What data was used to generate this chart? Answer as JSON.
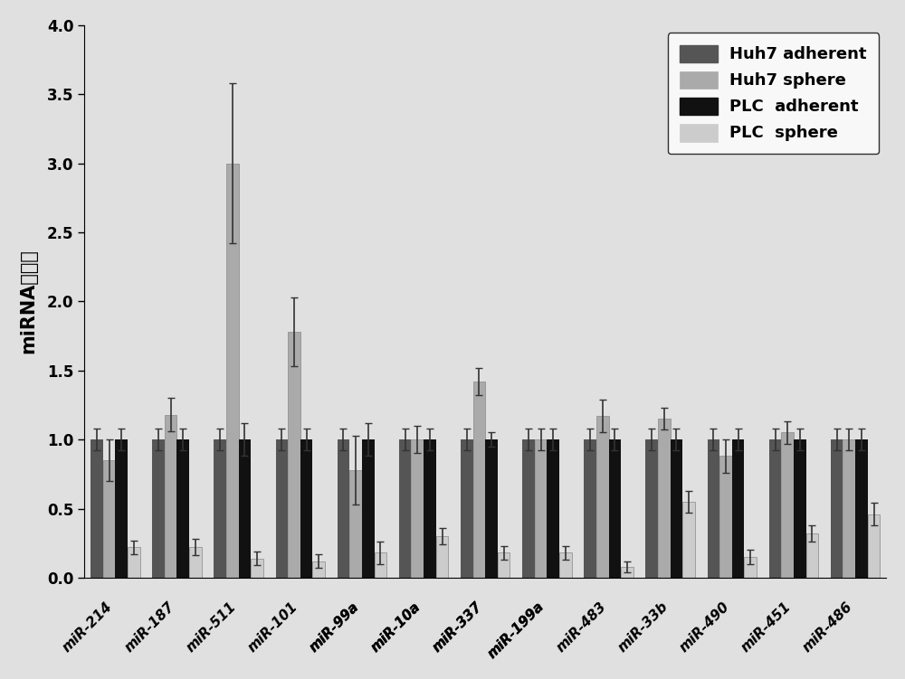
{
  "categories": [
    "miR-214",
    "miR-187",
    "miR-511",
    "miR-101",
    "miR-99a",
    "miR-10a",
    "miR-337",
    "miR-199a",
    "miR-483",
    "miR-33b",
    "miR-490",
    "miR-451",
    "miR-486"
  ],
  "underlined": [
    "miR-99a",
    "miR-10a",
    "miR-337",
    "miR-199a"
  ],
  "huh7_adherent": [
    1.0,
    1.0,
    1.0,
    1.0,
    1.0,
    1.0,
    1.0,
    1.0,
    1.0,
    1.0,
    1.0,
    1.0,
    1.0
  ],
  "huh7_sphere": [
    0.85,
    1.18,
    3.0,
    1.78,
    0.78,
    1.0,
    1.42,
    1.0,
    1.17,
    1.15,
    0.88,
    1.05,
    1.0
  ],
  "plc_adherent": [
    1.0,
    1.0,
    1.0,
    1.0,
    1.0,
    1.0,
    1.0,
    1.0,
    1.0,
    1.0,
    1.0,
    1.0,
    1.0
  ],
  "plc_sphere": [
    0.22,
    0.22,
    0.14,
    0.12,
    0.18,
    0.3,
    0.18,
    0.18,
    0.08,
    0.55,
    0.15,
    0.32,
    0.46
  ],
  "huh7_adherent_err": [
    0.08,
    0.08,
    0.08,
    0.08,
    0.08,
    0.08,
    0.08,
    0.08,
    0.08,
    0.08,
    0.08,
    0.08,
    0.08
  ],
  "huh7_sphere_err": [
    0.15,
    0.12,
    0.58,
    0.25,
    0.25,
    0.1,
    0.1,
    0.08,
    0.12,
    0.08,
    0.12,
    0.08,
    0.08
  ],
  "plc_adherent_err": [
    0.08,
    0.08,
    0.12,
    0.08,
    0.12,
    0.08,
    0.05,
    0.08,
    0.08,
    0.08,
    0.08,
    0.08,
    0.08
  ],
  "plc_sphere_err": [
    0.05,
    0.06,
    0.05,
    0.05,
    0.08,
    0.06,
    0.05,
    0.05,
    0.04,
    0.08,
    0.05,
    0.06,
    0.08
  ],
  "color_huh7_adherent": "#555555",
  "color_huh7_sphere": "#aaaaaa",
  "color_plc_adherent": "#111111",
  "color_plc_sphere": "#cccccc",
  "ylabel": "miRNA表达量",
  "ylim": [
    0,
    4.0
  ],
  "yticks": [
    0.0,
    0.5,
    1.0,
    1.5,
    2.0,
    2.5,
    3.0,
    3.5,
    4.0
  ],
  "legend_labels": [
    "Huh7 adherent",
    "Huh7 sphere",
    "PLC  adherent",
    "PLC  sphere"
  ],
  "background_color": "#e0e0e0"
}
